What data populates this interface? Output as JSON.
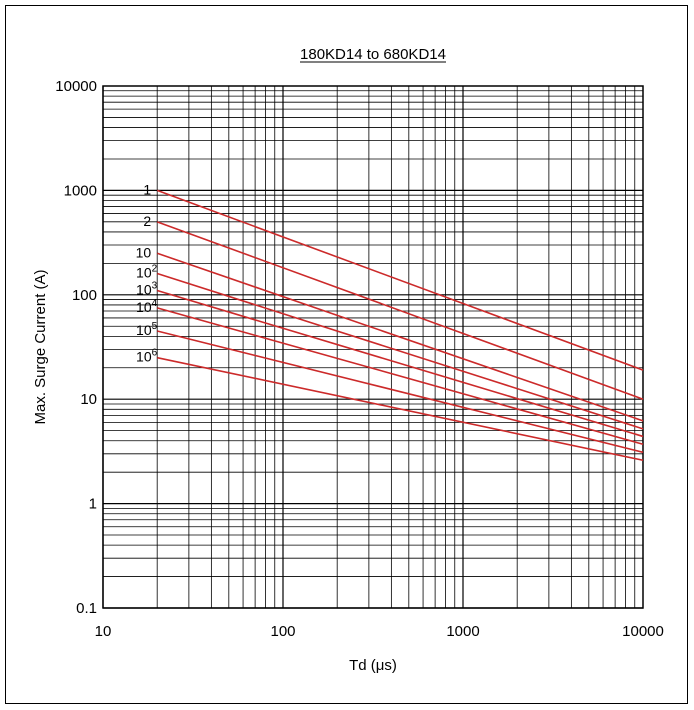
{
  "chart_data": {
    "type": "line",
    "title": "180KD14 to 680KD14",
    "xlabel": "Td (μs)",
    "ylabel": "Max. Surge Current (A)",
    "x_scale": "log",
    "y_scale": "log",
    "xlim": [
      10,
      10000
    ],
    "ylim": [
      0.1,
      10000
    ],
    "x_ticks": [
      "10",
      "100",
      "1000",
      "10000"
    ],
    "y_ticks": [
      "0.1",
      "1",
      "10",
      "100",
      "1000",
      "10000"
    ],
    "grid": true,
    "line_color": "#cc2a2a",
    "series": [
      {
        "name": "1",
        "name_base": "1",
        "name_exp": "",
        "x": [
          20,
          10000
        ],
        "y": [
          1000,
          19
        ]
      },
      {
        "name": "2",
        "name_base": "2",
        "name_exp": "",
        "x": [
          20,
          10000
        ],
        "y": [
          500,
          10
        ]
      },
      {
        "name": "10",
        "name_base": "10",
        "name_exp": "",
        "x": [
          20,
          10000
        ],
        "y": [
          250,
          6.2
        ]
      },
      {
        "name": "10^2",
        "name_base": "10",
        "name_exp": "2",
        "x": [
          20,
          10000
        ],
        "y": [
          160,
          5.2
        ]
      },
      {
        "name": "10^3",
        "name_base": "10",
        "name_exp": "3",
        "x": [
          20,
          10000
        ],
        "y": [
          110,
          4.4
        ]
      },
      {
        "name": "10^4",
        "name_base": "10",
        "name_exp": "4",
        "x": [
          20,
          10000
        ],
        "y": [
          75,
          3.7
        ]
      },
      {
        "name": "10^5",
        "name_base": "10",
        "name_exp": "5",
        "x": [
          20,
          10000
        ],
        "y": [
          45,
          3.1
        ]
      },
      {
        "name": "10^6",
        "name_base": "10",
        "name_exp": "6",
        "x": [
          20,
          10000
        ],
        "y": [
          25,
          2.6
        ]
      }
    ]
  }
}
